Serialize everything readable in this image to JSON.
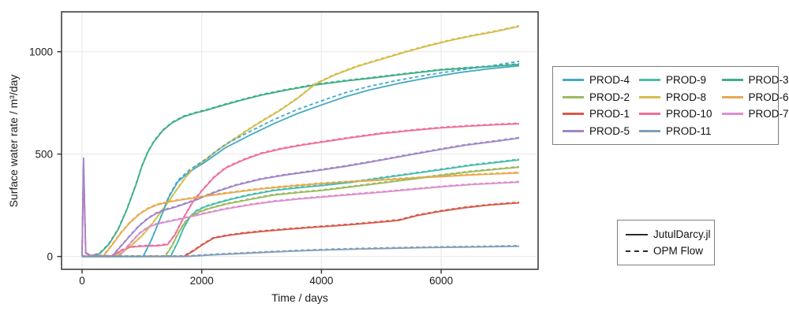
{
  "figure": {
    "xlabel": "Time / days",
    "ylabel": "Surface water rate / m³/day"
  },
  "legend_wells": {
    "items": [
      {
        "label": "PROD-4",
        "color": "#45a9c6"
      },
      {
        "label": "PROD-2",
        "color": "#9cba5e"
      },
      {
        "label": "PROD-1",
        "color": "#d8584a"
      },
      {
        "label": "PROD-5",
        "color": "#a086c6"
      },
      {
        "label": "PROD-9",
        "color": "#49bdae"
      },
      {
        "label": "PROD-8",
        "color": "#d4bd4e"
      },
      {
        "label": "PROD-10",
        "color": "#ee6f9d"
      },
      {
        "label": "PROD-11",
        "color": "#7f9eba"
      },
      {
        "label": "PROD-3",
        "color": "#3fae85"
      },
      {
        "label": "PROD-6",
        "color": "#e8a94f"
      },
      {
        "label": "PROD-7",
        "color": "#dc8fcd"
      }
    ]
  },
  "legend_styles": {
    "items": [
      {
        "label": "JutulDarcy.jl",
        "style": "solid"
      },
      {
        "label": "OPM Flow",
        "style": "dashed"
      }
    ]
  },
  "chart_data": {
    "type": "line",
    "title": "",
    "xlabel": "Time / days",
    "ylabel": "Surface water rate / m³/day",
    "xlim": [
      -343,
      7622
    ],
    "ylim": [
      -63,
      1195
    ],
    "xticks": [
      0,
      2000,
      4000,
      6000
    ],
    "xtick_labels": [
      "0",
      "2000",
      "4000",
      "6000"
    ],
    "yticks": [
      0,
      500,
      1000
    ],
    "ytick_labels": [
      "0",
      "500",
      "1000"
    ],
    "grid": true,
    "legend_position": "right",
    "comparison_note": "Each well plotted twice: JutulDarcy.jl (solid) and OPM Flow (dashed), nearly overlapping",
    "series": [
      {
        "name": "PROD-3",
        "color": "#3fae85",
        "x": [
          0,
          150,
          300,
          450,
          600,
          750,
          900,
          1000,
          1100,
          1200,
          1350,
          1500,
          1700,
          1900,
          2100,
          2400,
          2700,
          3000,
          3400,
          3900,
          4400,
          4900,
          5400,
          6000,
          6500,
          6900,
          7305
        ],
        "y": [
          0,
          0,
          15,
          60,
          130,
          230,
          350,
          440,
          510,
          560,
          615,
          652,
          683,
          701,
          716,
          742,
          766,
          788,
          812,
          838,
          857,
          873,
          891,
          911,
          921,
          929,
          938
        ]
      },
      {
        "name": "PROD-8",
        "color": "#d4bd4e",
        "x": [
          0,
          550,
          700,
          850,
          1000,
          1150,
          1300,
          1450,
          1600,
          1750,
          1900,
          2050,
          2250,
          2500,
          2750,
          3000,
          3300,
          3600,
          3900,
          4200,
          4600,
          5000,
          5400,
          5800,
          6200,
          6600,
          6900,
          7305
        ],
        "y": [
          0,
          0,
          25,
          60,
          100,
          150,
          210,
          270,
          333,
          393,
          440,
          468,
          515,
          565,
          613,
          660,
          712,
          772,
          842,
          884,
          928,
          963,
          998,
          1030,
          1058,
          1082,
          1098,
          1124
        ]
      },
      {
        "name": "PROD-4",
        "color": "#45a9c6",
        "x": [
          0,
          1020,
          1150,
          1300,
          1450,
          1600,
          1800,
          2050,
          2400,
          2800,
          3200,
          3600,
          4000,
          4400,
          4800,
          5300,
          5800,
          6300,
          6800,
          7305
        ],
        "y": [
          0,
          0,
          75,
          180,
          290,
          365,
          415,
          460,
          532,
          592,
          648,
          698,
          740,
          780,
          813,
          846,
          874,
          898,
          917,
          931
        ],
        "y_opm": [
          0,
          0,
          75,
          182,
          295,
          372,
          424,
          472,
          548,
          610,
          668,
          718,
          760,
          800,
          831,
          862,
          888,
          910,
          930,
          953
        ]
      },
      {
        "name": "PROD-10",
        "color": "#ee6f9d",
        "x": [
          0,
          25,
          60,
          120,
          300,
          500,
          650,
          800,
          1000,
          1250,
          1430,
          1550,
          1700,
          1850,
          2000,
          2200,
          2400,
          2700,
          3000,
          3350,
          3700,
          4000,
          4500,
          5000,
          5500,
          6000,
          6500,
          6900,
          7305
        ],
        "y": [
          0,
          450,
          15,
          5,
          2,
          0,
          28,
          45,
          50,
          52,
          58,
          105,
          190,
          265,
          320,
          385,
          432,
          472,
          503,
          527,
          545,
          558,
          580,
          600,
          615,
          628,
          637,
          643,
          648
        ]
      },
      {
        "name": "PROD-5",
        "color": "#a086c6",
        "x": [
          0,
          25,
          60,
          120,
          300,
          500,
          650,
          800,
          950,
          1100,
          1250,
          1400,
          1550,
          1700,
          1900,
          2100,
          2300,
          2600,
          3000,
          3400,
          3900,
          4400,
          4900,
          5400,
          5900,
          6400,
          6900,
          7305
        ],
        "y": [
          0,
          478,
          20,
          6,
          2,
          0,
          50,
          100,
          148,
          185,
          212,
          228,
          240,
          255,
          275,
          300,
          322,
          350,
          378,
          398,
          418,
          440,
          465,
          492,
          518,
          543,
          562,
          578
        ]
      },
      {
        "name": "PROD-9",
        "color": "#49bdae",
        "x": [
          0,
          1480,
          1600,
          1700,
          1800,
          1900,
          2050,
          2250,
          2500,
          2800,
          3200,
          3600,
          4000,
          4500,
          5000,
          5500,
          6000,
          6500,
          6900,
          7305
        ],
        "y": [
          0,
          0,
          70,
          140,
          190,
          220,
          242,
          260,
          280,
          300,
          322,
          335,
          346,
          362,
          383,
          403,
          424,
          445,
          458,
          472
        ]
      },
      {
        "name": "PROD-2",
        "color": "#9cba5e",
        "x": [
          0,
          1390,
          1500,
          1600,
          1700,
          1800,
          1950,
          2100,
          2400,
          2800,
          3200,
          3600,
          4000,
          4500,
          5000,
          5500,
          6000,
          6500,
          6900,
          7305
        ],
        "y": [
          0,
          0,
          50,
          110,
          158,
          192,
          216,
          232,
          255,
          278,
          300,
          312,
          322,
          340,
          358,
          377,
          396,
          414,
          425,
          436
        ]
      },
      {
        "name": "PROD-6",
        "color": "#e8a94f",
        "x": [
          0,
          350,
          500,
          650,
          800,
          950,
          1100,
          1250,
          1450,
          1650,
          1900,
          2150,
          2500,
          3000,
          3500,
          4000,
          4500,
          5000,
          5500,
          6000,
          6500,
          6900,
          7305
        ],
        "y": [
          0,
          0,
          55,
          115,
          165,
          205,
          233,
          252,
          266,
          276,
          287,
          298,
          312,
          330,
          344,
          356,
          365,
          373,
          382,
          390,
          398,
          403,
          408
        ]
      },
      {
        "name": "PROD-7",
        "color": "#dc8fcd",
        "x": [
          0,
          620,
          780,
          950,
          1100,
          1250,
          1400,
          1600,
          1800,
          2050,
          2400,
          2800,
          3200,
          3600,
          4000,
          4500,
          5000,
          5500,
          6000,
          6500,
          6900,
          7305
        ],
        "y": [
          0,
          0,
          55,
          110,
          142,
          158,
          168,
          180,
          193,
          210,
          232,
          252,
          268,
          280,
          290,
          302,
          314,
          327,
          340,
          351,
          357,
          363
        ]
      },
      {
        "name": "PROD-1",
        "color": "#d8584a",
        "x": [
          0,
          1700,
          1850,
          2000,
          2200,
          2450,
          2700,
          3000,
          3400,
          3800,
          4200,
          4600,
          5000,
          5300,
          5600,
          6000,
          6400,
          6800,
          7305
        ],
        "y": [
          0,
          0,
          25,
          55,
          90,
          103,
          113,
          122,
          132,
          141,
          149,
          158,
          168,
          177,
          200,
          221,
          238,
          251,
          262
        ]
      },
      {
        "name": "PROD-11",
        "color": "#7f9eba",
        "x": [
          0,
          1750,
          2200,
          2700,
          3200,
          3700,
          4200,
          4700,
          5200,
          5700,
          6200,
          6700,
          7305
        ],
        "y": [
          0,
          0,
          8,
          15,
          22,
          28,
          33,
          37,
          40,
          43,
          45,
          47,
          50
        ]
      }
    ]
  }
}
